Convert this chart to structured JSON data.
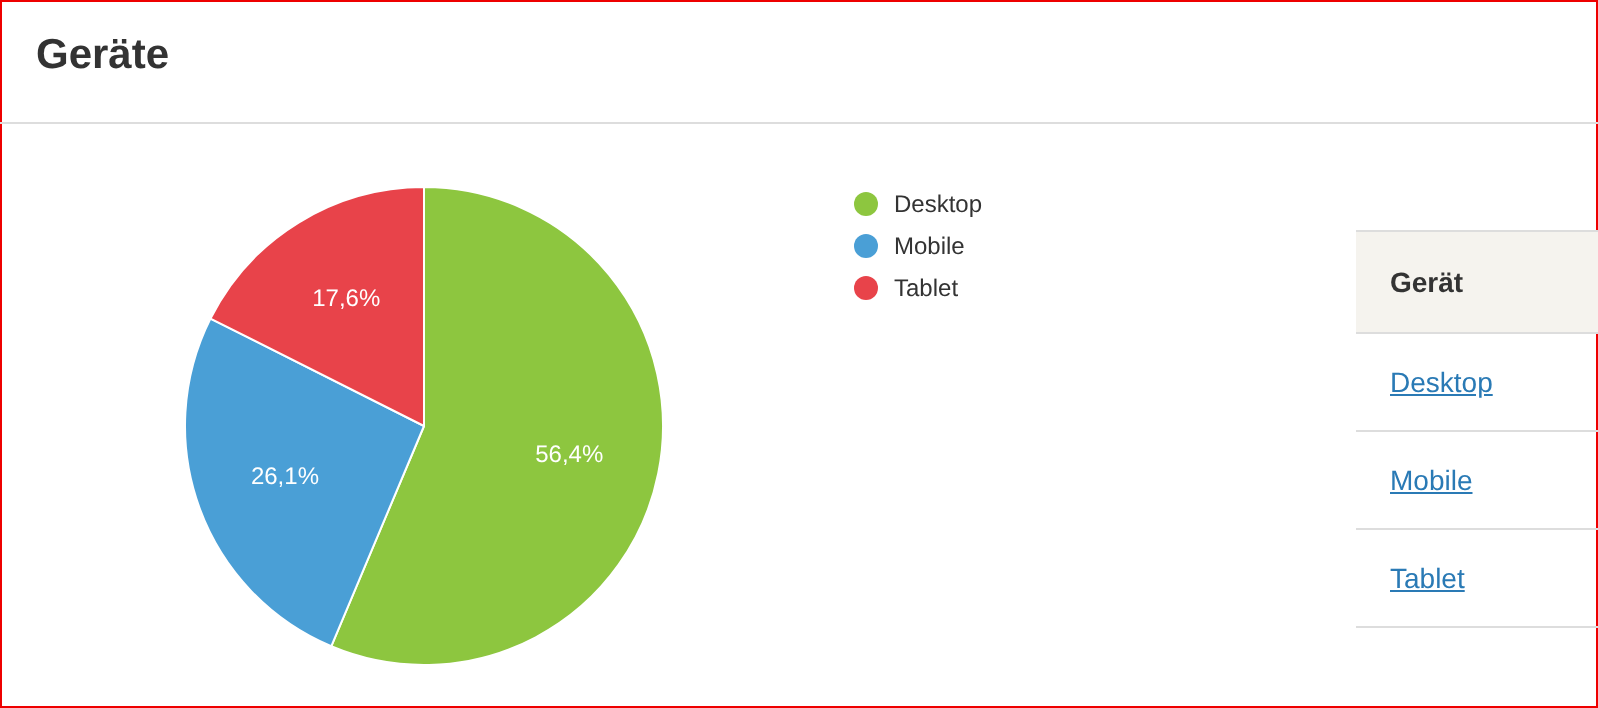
{
  "chart_data": {
    "type": "pie",
    "title": "Geräte",
    "categories": [
      "Desktop",
      "Mobile",
      "Tablet"
    ],
    "values": [
      56.4,
      26.1,
      17.6
    ],
    "colors": [
      "#8dc63f",
      "#4a9fd6",
      "#e8434a"
    ],
    "value_labels": [
      "56,4%",
      "26,1%",
      "17,6%"
    ],
    "legend": "right",
    "annotations": [
      "Gerät"
    ]
  }
}
